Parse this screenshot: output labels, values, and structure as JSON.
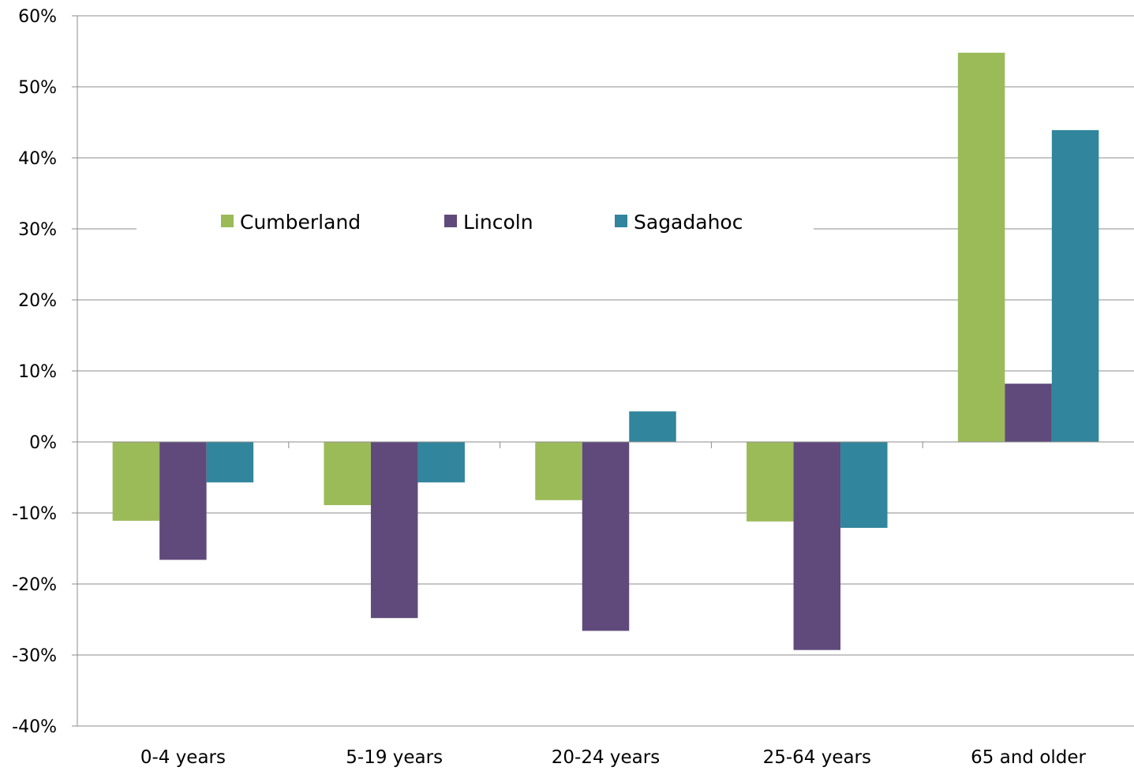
{
  "chart_data": {
    "type": "bar",
    "title": "",
    "xlabel": "",
    "ylabel": "",
    "categories": [
      "0-4 years",
      "5-19 years",
      "20-24 years",
      "25-64 years",
      "65 and older"
    ],
    "series": [
      {
        "name": "Cumberland",
        "color": "#9BBB59",
        "values": [
          -11.1,
          -8.9,
          -8.2,
          -11.2,
          54.8
        ]
      },
      {
        "name": "Lincoln",
        "color": "#604A7B",
        "values": [
          -16.6,
          -24.8,
          -26.6,
          -29.3,
          8.2
        ]
      },
      {
        "name": "Sagadahoc",
        "color": "#31859C",
        "values": [
          -5.7,
          -5.7,
          4.3,
          -12.1,
          43.9
        ]
      }
    ],
    "ylim": [
      -40,
      60
    ],
    "ytick_values": [
      60,
      50,
      40,
      30,
      20,
      10,
      0,
      -10,
      -20,
      -30,
      -40
    ],
    "ytick_labels": [
      "60%",
      "50%",
      "40%",
      "30%",
      "20%",
      "10%",
      "0%",
      "-10%",
      "-20%",
      "-30%",
      "-40%"
    ],
    "grid": true,
    "legend_position": "upper-left, inside plot"
  }
}
